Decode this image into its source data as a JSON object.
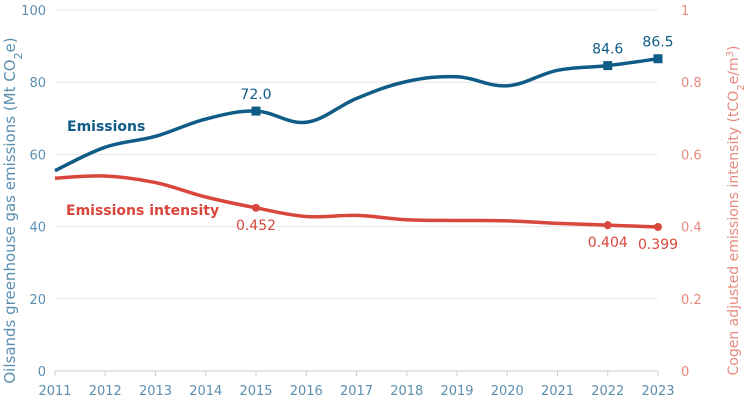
{
  "chart_data": {
    "type": "line",
    "x": [
      2011,
      2012,
      2013,
      2014,
      2015,
      2016,
      2017,
      2018,
      2019,
      2020,
      2021,
      2022,
      2023
    ],
    "series": [
      {
        "name": "Emissions",
        "axis": "left",
        "color": "#0f5c87",
        "marker": "square",
        "values": [
          55.5,
          62.0,
          65.0,
          69.8,
          72.0,
          68.9,
          75.5,
          80.2,
          81.5,
          79.0,
          83.3,
          84.6,
          86.5
        ],
        "labeled": [
          {
            "x": 2015,
            "label": "72.0"
          },
          {
            "x": 2022,
            "label": "84.6"
          },
          {
            "x": 2023,
            "label": "86.5"
          }
        ]
      },
      {
        "name": "Emissions intensity",
        "axis": "right",
        "color": "#d9463b",
        "marker": "circle",
        "values": [
          0.534,
          0.54,
          0.522,
          0.482,
          0.452,
          0.428,
          0.431,
          0.419,
          0.417,
          0.416,
          0.409,
          0.404,
          0.399
        ],
        "labeled": [
          {
            "x": 2015,
            "label": "0.452"
          },
          {
            "x": 2022,
            "label": "0.404"
          },
          {
            "x": 2023,
            "label": "0.399"
          }
        ]
      }
    ],
    "y_left": {
      "label": "Oilsands greenhouse gas emissions (Mt CO",
      "sub": "2",
      "label_end": "e)",
      "ylim": [
        0,
        100
      ],
      "ticks": [
        "0",
        "20",
        "40",
        "60",
        "80",
        "100"
      ]
    },
    "y_right": {
      "label": "Cogen adjusted emissions intensity (tCO",
      "sub": "2",
      "label_mid": "e/m",
      "sup": "3",
      "label_end": ")",
      "ylim": [
        0,
        1
      ],
      "ticks": [
        "0",
        "0.2",
        "0.4",
        "0.6",
        "0.8",
        "1"
      ]
    },
    "x_ticks": [
      "2011",
      "2012",
      "2013",
      "2014",
      "2015",
      "2016",
      "2017",
      "2018",
      "2019",
      "2020",
      "2021",
      "2022",
      "2023"
    ],
    "grid": true,
    "legend": "inline"
  }
}
